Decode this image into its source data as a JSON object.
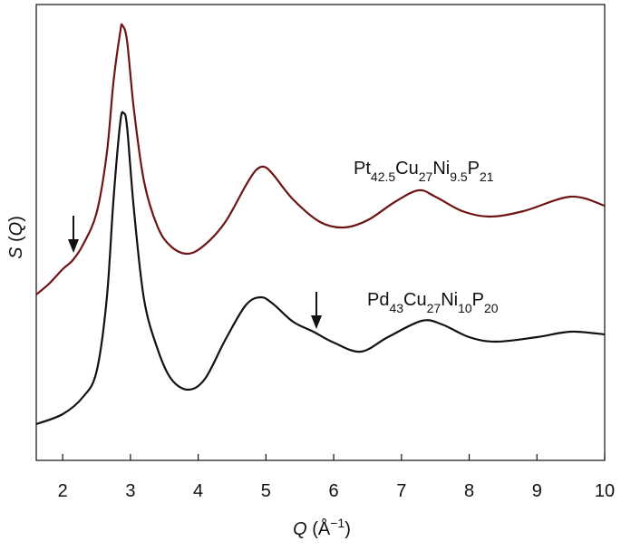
{
  "chart_data": {
    "type": "line",
    "xlabel": [
      "Q",
      " (Å",
      "−1",
      ")"
    ],
    "ylabel": [
      "S",
      " (",
      "Q",
      ")"
    ],
    "xlim": [
      1.61,
      10
    ],
    "xticks": [
      2,
      3,
      4,
      5,
      6,
      7,
      8,
      9,
      10
    ],
    "ylim": [
      0,
      503
    ],
    "series": [
      {
        "name": [
          "Pt",
          "42.5",
          "Cu",
          "27",
          "Ni",
          "9.5",
          "P",
          "21"
        ],
        "color": "#6e1414",
        "x": [
          1.61,
          1.8,
          2.0,
          2.15,
          2.3,
          2.5,
          2.65,
          2.75,
          2.85,
          2.88,
          2.95,
          3.05,
          3.2,
          3.4,
          3.6,
          3.85,
          4.1,
          4.4,
          4.7,
          4.85,
          4.97,
          5.1,
          5.4,
          5.8,
          6.15,
          6.5,
          6.9,
          7.25,
          7.5,
          7.9,
          8.3,
          8.8,
          9.5,
          10
        ],
        "values": [
          183,
          195,
          211,
          221,
          238,
          273,
          338,
          418,
          473,
          480,
          463,
          388,
          308,
          258,
          236,
          228,
          238,
          263,
          303,
          320,
          324,
          316,
          288,
          263,
          257,
          265,
          285,
          298,
          291,
          275,
          269,
          275,
          291,
          281
        ]
      },
      {
        "name": [
          "Pd",
          "43",
          "Cu",
          "27",
          "Ni",
          "10",
          "P",
          "20"
        ],
        "color": "#111111",
        "x": [
          1.61,
          2.0,
          2.3,
          2.5,
          2.65,
          2.75,
          2.85,
          2.9,
          2.95,
          3.05,
          3.2,
          3.4,
          3.6,
          3.85,
          4.1,
          4.4,
          4.7,
          4.92,
          5.1,
          5.4,
          5.7,
          6.0,
          6.4,
          6.8,
          7.3,
          7.6,
          8.0,
          8.4,
          9.0,
          9.5,
          10
        ],
        "values": [
          40,
          51,
          70,
          98,
          178,
          288,
          373,
          383,
          368,
          278,
          178,
          123,
          90,
          78,
          90,
          133,
          171,
          180,
          173,
          153,
          142,
          130,
          120,
          136,
          154,
          150,
          136,
          131,
          136,
          142,
          139
        ]
      }
    ]
  }
}
